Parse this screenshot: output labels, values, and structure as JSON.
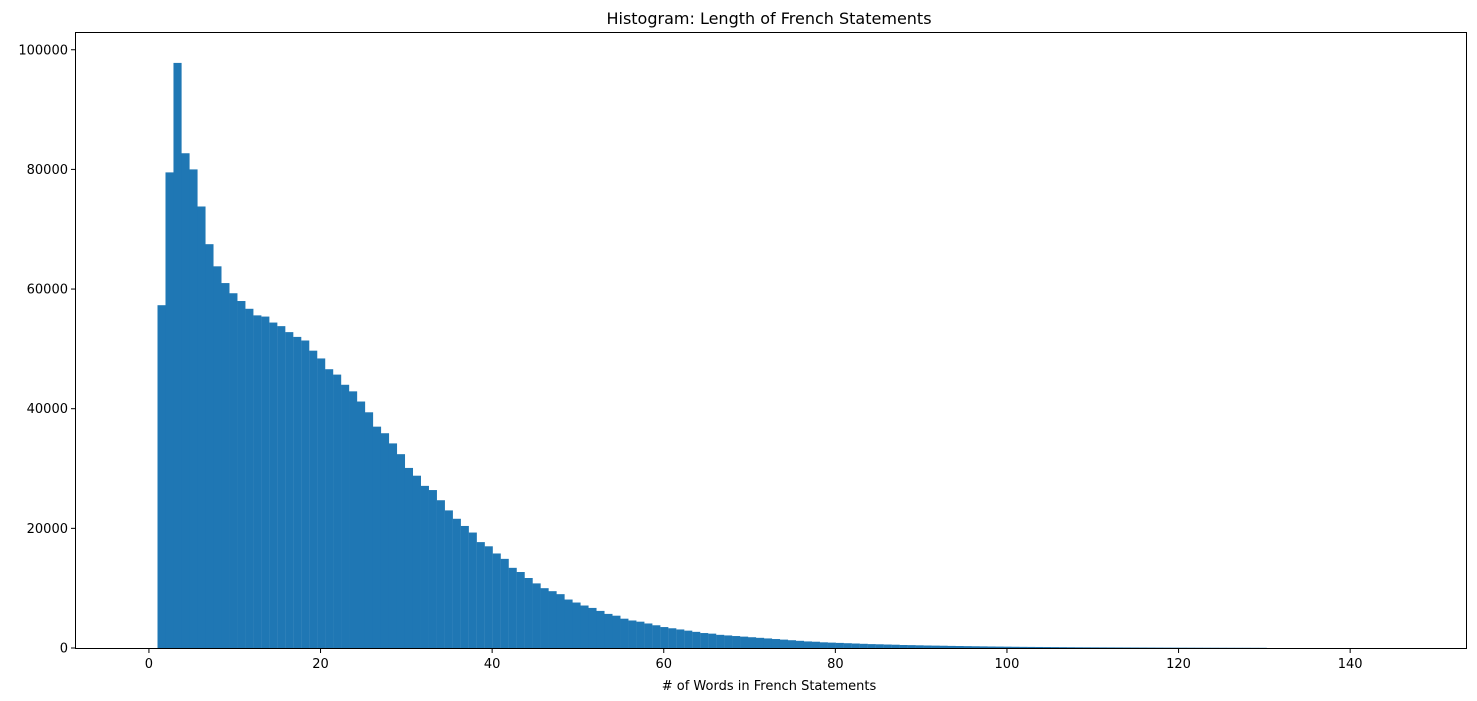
{
  "chart_data": {
    "type": "bar",
    "title": "Histogram: Length of French Statements",
    "xlabel": "# of Words in French Statements",
    "ylabel": "",
    "xlim": [
      -8.5,
      153.5
    ],
    "ylim": [
      0,
      102800
    ],
    "grid": false,
    "bar_color": "#1f77b4",
    "bin_width": 0.93,
    "x_ticks": [
      0,
      20,
      40,
      60,
      80,
      100,
      120,
      140
    ],
    "x_tick_labels": [
      "0",
      "20",
      "40",
      "60",
      "80",
      "100",
      "120",
      "140"
    ],
    "y_ticks": [
      0,
      20000,
      40000,
      60000,
      80000,
      100000
    ],
    "y_tick_labels": [
      "0",
      "20000",
      "40000",
      "60000",
      "80000",
      "100000"
    ],
    "bins": [
      1.0,
      1.93,
      2.86,
      3.79,
      4.72,
      5.65,
      6.58,
      7.51,
      8.44,
      9.37,
      10.3,
      11.23,
      12.16,
      13.09,
      14.02,
      14.95,
      15.88,
      16.81,
      17.74,
      18.67,
      19.6,
      20.53,
      21.46,
      22.39,
      23.32,
      24.25,
      25.18,
      26.11,
      27.04,
      27.97,
      28.9,
      29.83,
      30.76,
      31.69,
      32.62,
      33.55,
      34.48,
      35.41,
      36.34,
      37.27,
      38.2,
      39.13,
      40.06,
      40.99,
      41.92,
      42.85,
      43.78,
      44.71,
      45.64,
      46.57,
      47.5,
      48.43,
      49.36,
      50.29,
      51.22,
      52.15,
      53.08,
      54.01,
      54.94,
      55.87,
      56.8,
      57.73,
      58.66,
      59.59,
      60.52,
      61.45,
      62.38,
      63.31,
      64.24,
      65.17,
      66.1,
      67.03,
      67.96,
      68.89,
      69.82,
      70.75,
      71.68,
      72.61,
      73.54,
      74.47,
      75.4,
      76.33,
      77.26,
      78.19,
      79.12,
      80.05,
      80.98,
      81.91,
      82.84,
      83.77,
      84.7,
      85.63,
      86.56,
      87.49,
      88.42,
      89.35,
      90.28,
      91.21,
      92.14,
      93.07,
      94.0,
      94.93,
      95.86,
      96.79,
      97.72,
      98.65,
      99.58,
      100.51,
      101.44,
      102.37,
      103.3,
      104.23,
      105.16,
      106.09,
      107.02,
      107.95,
      108.88,
      109.81,
      110.74,
      111.67,
      112.6,
      113.53,
      114.46,
      115.39,
      116.32,
      117.25,
      118.18,
      119.11,
      120.04,
      120.97,
      121.9,
      122.83,
      123.76,
      124.69,
      125.62,
      126.55,
      127.48,
      128.41,
      129.34
    ],
    "values": [
      57300,
      79500,
      97800,
      82700,
      80000,
      73800,
      67500,
      63800,
      61000,
      59300,
      58000,
      56700,
      55600,
      55400,
      54400,
      53800,
      52800,
      52000,
      51400,
      49700,
      48400,
      46600,
      45700,
      44000,
      42900,
      41200,
      39400,
      37000,
      35900,
      34200,
      32400,
      30100,
      28800,
      27100,
      26400,
      24700,
      23000,
      21600,
      20400,
      19300,
      17700,
      17000,
      15800,
      14900,
      13400,
      12700,
      11700,
      10800,
      10000,
      9500,
      9000,
      8100,
      7600,
      7100,
      6700,
      6200,
      5700,
      5400,
      4900,
      4600,
      4400,
      4100,
      3800,
      3500,
      3300,
      3100,
      2900,
      2700,
      2500,
      2400,
      2200,
      2100,
      2000,
      1900,
      1800,
      1700,
      1600,
      1500,
      1400,
      1300,
      1200,
      1100,
      1050,
      950,
      900,
      850,
      800,
      750,
      700,
      650,
      620,
      580,
      550,
      500,
      480,
      450,
      420,
      400,
      380,
      350,
      330,
      310,
      290,
      270,
      250,
      235,
      220,
      205,
      190,
      180,
      170,
      160,
      150,
      140,
      130,
      120,
      115,
      110,
      105,
      100,
      95,
      90,
      85,
      80,
      75,
      70,
      66,
      62,
      58,
      55,
      52,
      49,
      46,
      43,
      40,
      38,
      36,
      34,
      32
    ]
  }
}
